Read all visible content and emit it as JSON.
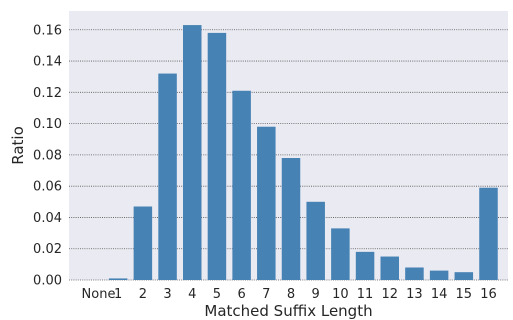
{
  "chart_data": {
    "type": "bar",
    "title": "",
    "xlabel": "Matched Suffix Length",
    "ylabel": "Ratio",
    "categories": [
      "None",
      "1",
      "2",
      "3",
      "4",
      "5",
      "6",
      "7",
      "8",
      "9",
      "10",
      "11",
      "12",
      "13",
      "14",
      "15",
      "16"
    ],
    "values": [
      0.0,
      0.001,
      0.047,
      0.132,
      0.163,
      0.158,
      0.121,
      0.098,
      0.078,
      0.05,
      0.033,
      0.018,
      0.015,
      0.008,
      0.006,
      0.005,
      0.059
    ],
    "ylim": [
      0,
      0.172
    ],
    "yticks": [
      "0.00",
      "0.02",
      "0.04",
      "0.06",
      "0.08",
      "0.10",
      "0.12",
      "0.14",
      "0.16"
    ],
    "grid": true,
    "bar_color": "#4682b4",
    "background_color": "#eaeaf2",
    "grid_color": "#555555"
  }
}
